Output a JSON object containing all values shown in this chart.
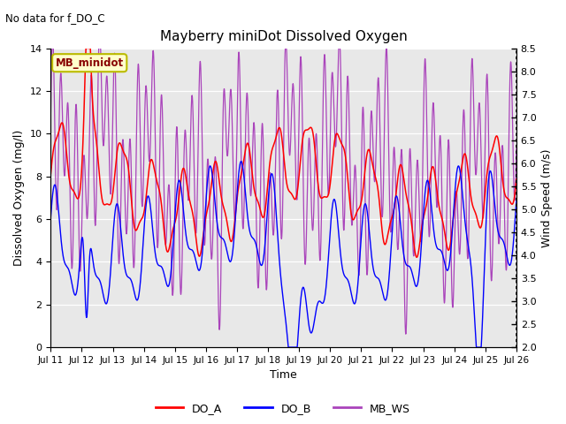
{
  "title": "Mayberry miniDot Dissolved Oxygen",
  "subtitle": "No data for f_DO_C",
  "xlabel": "Time",
  "ylabel_left": "Dissolved Oxygen (mg/l)",
  "ylabel_right": "Wind Speed (m/s)",
  "ylim_left": [
    0,
    14
  ],
  "ylim_right": [
    2.0,
    8.5
  ],
  "yticks_left": [
    0,
    2,
    4,
    6,
    8,
    10,
    12,
    14
  ],
  "yticks_right": [
    2.0,
    2.5,
    3.0,
    3.5,
    4.0,
    4.5,
    5.0,
    5.5,
    6.0,
    6.5,
    7.0,
    7.5,
    8.0,
    8.5
  ],
  "x_tick_labels": [
    "Jul 11",
    "Jul 12",
    "Jul 13",
    "Jul 14",
    "Jul 15",
    "Jul 16",
    "Jul 17",
    "Jul 18",
    "Jul 19",
    "Jul 20",
    "Jul 21",
    "Jul 22",
    "Jul 23",
    "Jul 24",
    "Jul 25",
    "Jul 26"
  ],
  "color_DO_A": "#ff0000",
  "color_DO_B": "#0000ff",
  "color_MB_WS": "#aa44bb",
  "color_grid": "#cccccc",
  "color_bg": "#e8e8e8",
  "legend_label_A": "DO_A",
  "legend_label_B": "DO_B",
  "legend_label_WS": "MB_WS",
  "legend_box_label": "MB_minidot",
  "legend_box_color": "#ffffcc",
  "legend_box_border": "#bbbb00",
  "figwidth": 6.4,
  "figheight": 4.8,
  "dpi": 100
}
